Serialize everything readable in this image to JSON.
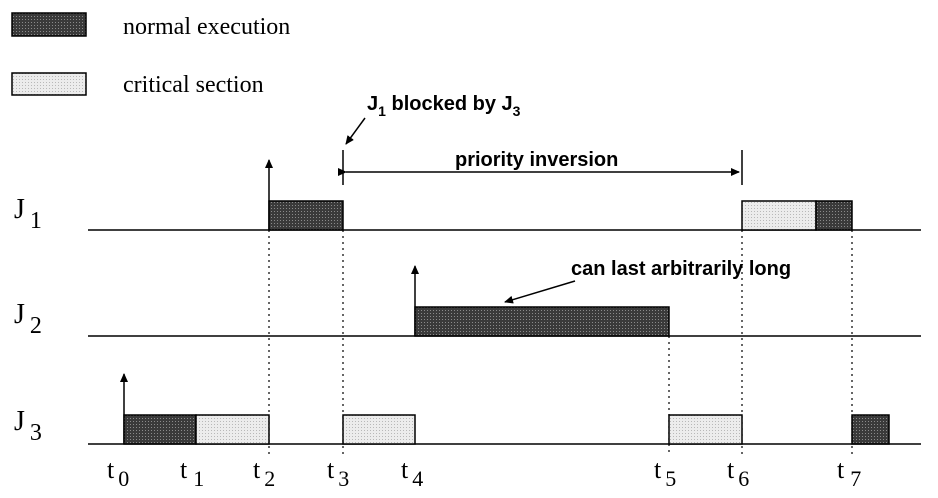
{
  "legend": {
    "normal_label": "normal execution",
    "critical_label": "critical section"
  },
  "jobs": [
    {
      "name": "J",
      "index": "1"
    },
    {
      "name": "J",
      "index": "2"
    },
    {
      "name": "J",
      "index": "3"
    }
  ],
  "time_ticks": [
    {
      "name": "t",
      "index": "0"
    },
    {
      "name": "t",
      "index": "1"
    },
    {
      "name": "t",
      "index": "2"
    },
    {
      "name": "t",
      "index": "3"
    },
    {
      "name": "t",
      "index": "4"
    },
    {
      "name": "t",
      "index": "5"
    },
    {
      "name": "t",
      "index": "6"
    },
    {
      "name": "t",
      "index": "7"
    }
  ],
  "annotations": {
    "blocked_main": "J",
    "blocked_sub1": "1",
    "blocked_mid": " blocked by J",
    "blocked_sub2": "3",
    "priority_inversion": "priority inversion",
    "arbitrary": "can last arbitrarily long"
  },
  "colors": {
    "normal_fill": "#4a4a4a",
    "critical_fill": "#e4e4e4",
    "line": "#000000"
  }
}
